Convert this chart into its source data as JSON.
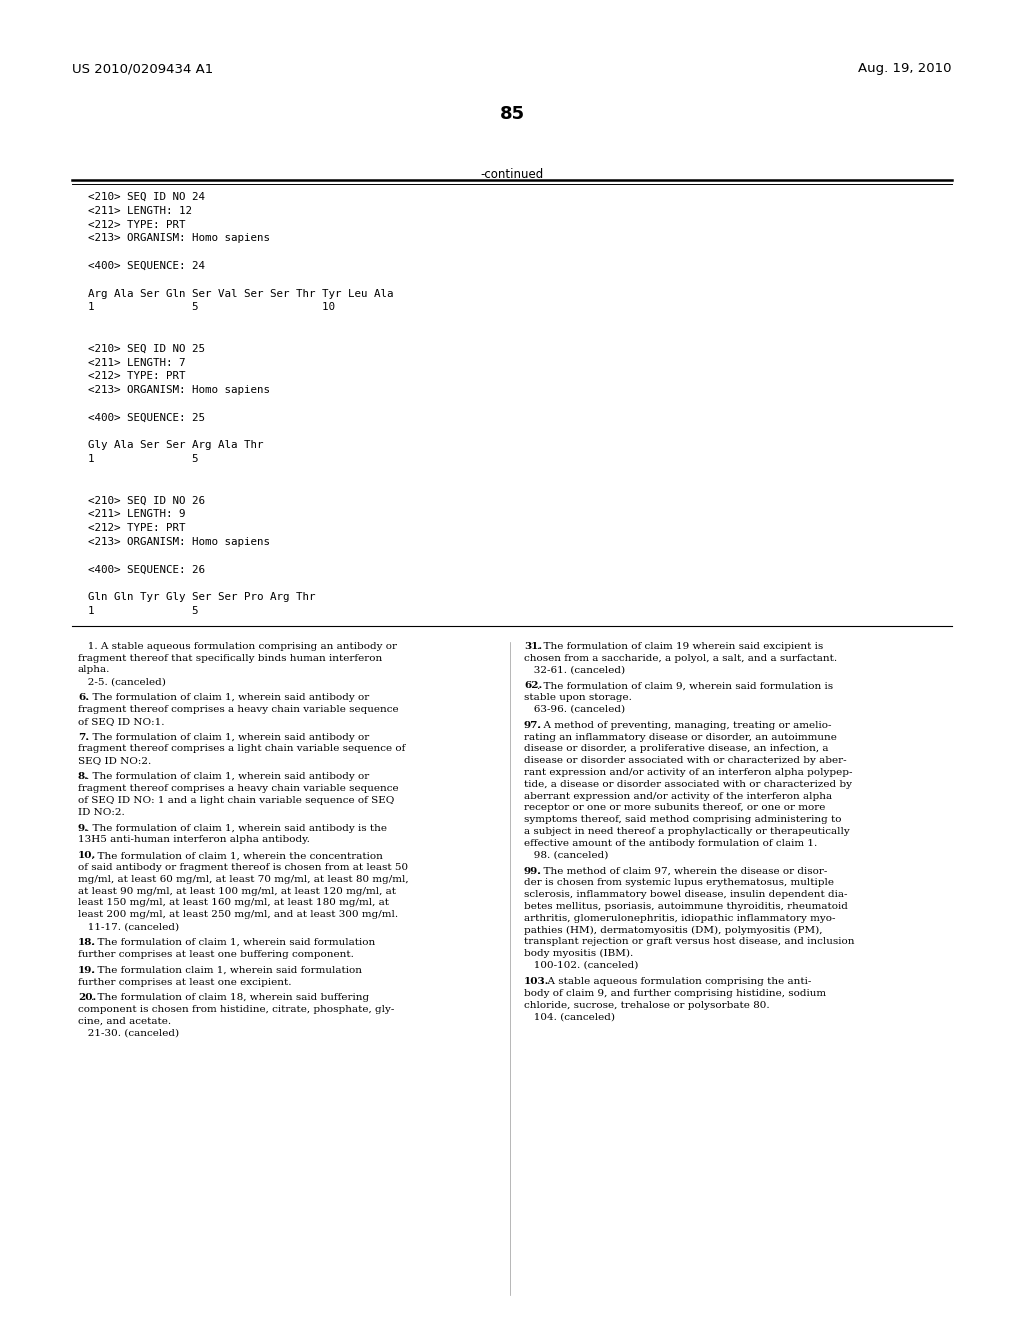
{
  "header_left": "US 2010/0209434 A1",
  "header_right": "Aug. 19, 2010",
  "page_number": "85",
  "continued_label": "-continued",
  "background_color": "#ffffff",
  "text_color": "#000000",
  "mono_lines_top": [
    "<210> SEQ ID NO 24",
    "<211> LENGTH: 12",
    "<212> TYPE: PRT",
    "<213> ORGANISM: Homo sapiens",
    "",
    "<400> SEQUENCE: 24",
    "",
    "Arg Ala Ser Gln Ser Val Ser Ser Thr Tyr Leu Ala",
    "1               5                   10",
    "",
    "",
    "<210> SEQ ID NO 25",
    "<211> LENGTH: 7",
    "<212> TYPE: PRT",
    "<213> ORGANISM: Homo sapiens",
    "",
    "<400> SEQUENCE: 25",
    "",
    "Gly Ala Ser Ser Arg Ala Thr",
    "1               5",
    "",
    "",
    "<210> SEQ ID NO 26",
    "<211> LENGTH: 9",
    "<212> TYPE: PRT",
    "<213> ORGANISM: Homo sapiens",
    "",
    "<400> SEQUENCE: 26",
    "",
    "Gln Gln Tyr Gly Ser Ser Pro Arg Thr",
    "1               5"
  ],
  "left_col_lines": [
    [
      "normal",
      "   1. A stable aqueous formulation comprising an antibody or"
    ],
    [
      "normal",
      "fragment thereof that specifically binds human interferon"
    ],
    [
      "normal",
      "alpha."
    ],
    [
      "normal",
      "   2-5. (canceled)"
    ],
    [
      "normal",
      "   "
    ],
    [
      "bold_num",
      "6",
      ". The formulation of claim 1, wherein said antibody or"
    ],
    [
      "normal",
      "fragment thereof comprises a heavy chain variable sequence"
    ],
    [
      "normal",
      "of SEQ ID NO:1."
    ],
    [
      "normal",
      "   "
    ],
    [
      "bold_num",
      "7",
      ". The formulation of claim 1, wherein said antibody or"
    ],
    [
      "normal",
      "fragment thereof comprises a light chain variable sequence of"
    ],
    [
      "normal",
      "SEQ ID NO:2."
    ],
    [
      "normal",
      "   "
    ],
    [
      "bold_num",
      "8",
      ". The formulation of claim 1, wherein said antibody or"
    ],
    [
      "normal",
      "fragment thereof comprises a heavy chain variable sequence"
    ],
    [
      "normal",
      "of SEQ ID NO: 1 and a light chain variable sequence of SEQ"
    ],
    [
      "normal",
      "ID NO:2."
    ],
    [
      "normal",
      "   "
    ],
    [
      "bold_num",
      "9",
      ". The formulation of claim 1, wherein said antibody is the"
    ],
    [
      "normal",
      "13H5 anti-human interferon alpha antibody."
    ],
    [
      "normal",
      "   "
    ],
    [
      "bold_num",
      "10",
      ". The formulation of claim 1, wherein the concentration"
    ],
    [
      "normal",
      "of said antibody or fragment thereof is chosen from at least 50"
    ],
    [
      "normal",
      "mg/ml, at least 60 mg/ml, at least 70 mg/ml, at least 80 mg/ml,"
    ],
    [
      "normal",
      "at least 90 mg/ml, at least 100 mg/ml, at least 120 mg/ml, at"
    ],
    [
      "normal",
      "least 150 mg/ml, at least 160 mg/ml, at least 180 mg/ml, at"
    ],
    [
      "normal",
      "least 200 mg/ml, at least 250 mg/ml, and at least 300 mg/ml."
    ],
    [
      "normal",
      "   11-17. (canceled)"
    ],
    [
      "normal",
      "   "
    ],
    [
      "bold_num",
      "18",
      ". The formulation of claim 1, wherein said formulation"
    ],
    [
      "normal",
      "further comprises at least one buffering component."
    ],
    [
      "normal",
      "   "
    ],
    [
      "bold_num",
      "19",
      ". The formulation claim 1, wherein said formulation"
    ],
    [
      "normal",
      "further comprises at least one excipient."
    ],
    [
      "normal",
      "   "
    ],
    [
      "bold_num",
      "20",
      ". The formulation of claim 18, wherein said buffering"
    ],
    [
      "normal",
      "component is chosen from histidine, citrate, phosphate, gly-"
    ],
    [
      "normal",
      "cine, and acetate."
    ],
    [
      "normal",
      "   21-30. (canceled)"
    ]
  ],
  "right_col_lines": [
    [
      "bold_num",
      "31",
      ". The formulation of claim 19 wherein said excipient is"
    ],
    [
      "normal",
      "chosen from a saccharide, a polyol, a salt, and a surfactant."
    ],
    [
      "normal",
      "   32-61. (canceled)"
    ],
    [
      "normal",
      "   "
    ],
    [
      "bold_num",
      "62",
      ". The formulation of claim 9, wherein said formulation is"
    ],
    [
      "normal",
      "stable upon storage."
    ],
    [
      "normal",
      "   63-96. (canceled)"
    ],
    [
      "normal",
      "   "
    ],
    [
      "bold_num",
      "97",
      ". A method of preventing, managing, treating or amelio-"
    ],
    [
      "normal",
      "rating an inflammatory disease or disorder, an autoimmune"
    ],
    [
      "normal",
      "disease or disorder, a proliferative disease, an infection, a"
    ],
    [
      "normal",
      "disease or disorder associated with or characterized by aber-"
    ],
    [
      "normal",
      "rant expression and/or activity of an interferon alpha polypep-"
    ],
    [
      "normal",
      "tide, a disease or disorder associated with or characterized by"
    ],
    [
      "normal",
      "aberrant expression and/or activity of the interferon alpha"
    ],
    [
      "normal",
      "receptor or one or more subunits thereof, or one or more"
    ],
    [
      "normal",
      "symptoms thereof, said method comprising administering to"
    ],
    [
      "normal",
      "a subject in need thereof a prophylactically or therapeutically"
    ],
    [
      "normal",
      "effective amount of the antibody formulation of claim 1."
    ],
    [
      "normal",
      "   98. (canceled)"
    ],
    [
      "normal",
      "   "
    ],
    [
      "bold_num",
      "99",
      ". The method of claim 97, wherein the disease or disor-"
    ],
    [
      "normal",
      "der is chosen from systemic lupus erythematosus, multiple"
    ],
    [
      "normal",
      "sclerosis, inflammatory bowel disease, insulin dependent dia-"
    ],
    [
      "normal",
      "betes mellitus, psoriasis, autoimmune thyroiditis, rheumatoid"
    ],
    [
      "normal",
      "arthritis, glomerulonephritis, idiopathic inflammatory myo-"
    ],
    [
      "normal",
      "pathies (HM), dermatomyositis (DM), polymyositis (PM),"
    ],
    [
      "normal",
      "transplant rejection or graft versus host disease, and inclusion"
    ],
    [
      "normal",
      "body myositis (IBM)."
    ],
    [
      "normal",
      "   100-102. (canceled)"
    ],
    [
      "normal",
      "   "
    ],
    [
      "bold_num",
      "103",
      ". A stable aqueous formulation comprising the anti-"
    ],
    [
      "normal",
      "body of claim 9, and further comprising histidine, sodium"
    ],
    [
      "normal",
      "chloride, sucrose, trehalose or polysorbate 80."
    ],
    [
      "normal",
      "   104. (canceled)"
    ]
  ]
}
